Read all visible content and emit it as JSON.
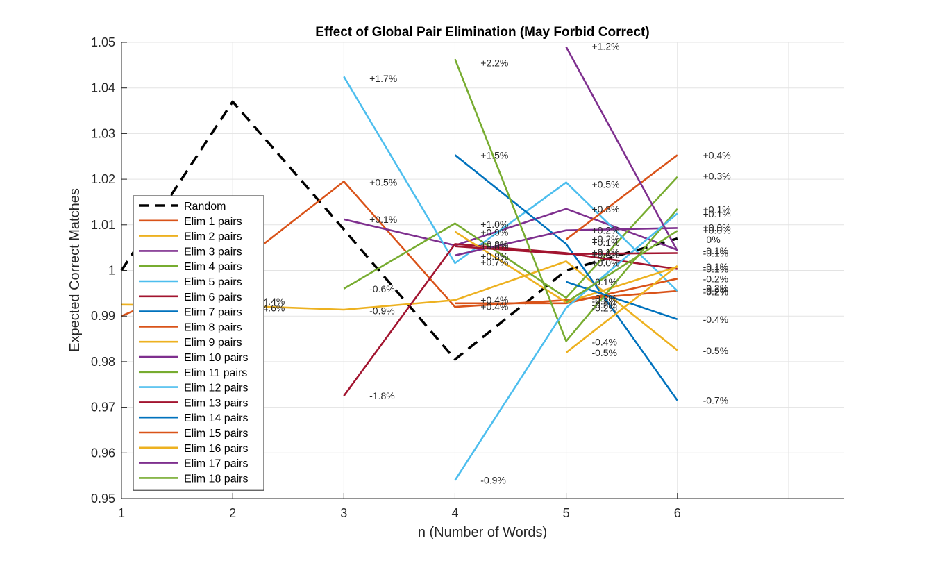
{
  "chart_data": {
    "type": "line",
    "title": "Effect of Global Pair Elimination (May Forbid Correct)",
    "xlabel": "n (Number of Words)",
    "ylabel": "Expected Correct Matches",
    "xlim": [
      1,
      7.5
    ],
    "ylim": [
      0.95,
      1.05
    ],
    "xticks": [
      "1",
      "2",
      "3",
      "4",
      "5",
      "6"
    ],
    "yticks": [
      "0.95",
      "0.96",
      "0.97",
      "0.98",
      "0.99",
      "1",
      "1.01",
      "1.02",
      "1.03",
      "1.04",
      "1.05"
    ],
    "grid": true,
    "legend_position": "west",
    "series": [
      {
        "name": "Random",
        "color": "#000000",
        "dash": true,
        "x": [
          1,
          2,
          3,
          4,
          5,
          6
        ],
        "values": [
          1.0,
          1.037,
          1.009,
          0.9805,
          1.0,
          1.007
        ]
      },
      {
        "name": "Elim 1 pairs",
        "color": "#D95319",
        "x": [
          1,
          2,
          3,
          4,
          5,
          6
        ],
        "values": [
          0.99,
          1.0005,
          1.0195,
          0.992,
          0.9935,
          0.9955
        ]
      },
      {
        "name": "Elim 2 pairs",
        "color": "#EDB120",
        "x": [
          1,
          2,
          3,
          4,
          5,
          6
        ],
        "values": [
          0.9925,
          0.9923,
          0.9914,
          0.9935,
          1.002,
          0.9825
        ]
      },
      {
        "name": "Elim 3 pairs",
        "color": "#7E2F8E",
        "x": [
          3,
          4,
          5,
          6
        ],
        "values": [
          1.0112,
          1.0055,
          1.0135,
          1.0045
        ]
      },
      {
        "name": "Elim 4 pairs",
        "color": "#77AC30",
        "x": [
          3,
          4,
          5,
          6
        ],
        "values": [
          0.996,
          1.0103,
          0.994,
          1.0205
        ]
      },
      {
        "name": "Elim 5 pairs",
        "color": "#4DBEEE",
        "x": [
          3,
          4,
          5,
          6
        ],
        "values": [
          1.0425,
          1.0016,
          1.0193,
          0.9955
        ]
      },
      {
        "name": "Elim 6 pairs",
        "color": "#A2142F",
        "x": [
          3,
          4,
          5,
          6
        ],
        "values": [
          0.9725,
          1.0058,
          1.0038,
          1.0003
        ]
      },
      {
        "name": "Elim 7 pairs",
        "color": "#0072BD",
        "x": [
          4,
          5,
          6
        ],
        "values": [
          1.0253,
          1.0058,
          0.9715
        ]
      },
      {
        "name": "Elim 8 pairs",
        "color": "#D95319",
        "x": [
          4,
          5,
          6
        ],
        "values": [
          0.9928,
          0.9928,
          0.9982
        ]
      },
      {
        "name": "Elim 9 pairs",
        "color": "#EDB120",
        "x": [
          4,
          5,
          6
        ],
        "values": [
          1.0085,
          0.993,
          1.0008
        ]
      },
      {
        "name": "Elim 10 pairs",
        "color": "#7E2F8E",
        "x": [
          4,
          5,
          6
        ],
        "values": [
          1.0033,
          1.0088,
          1.0093
        ]
      },
      {
        "name": "Elim 11 pairs",
        "color": "#77AC30",
        "x": [
          4,
          5,
          6
        ],
        "values": [
          1.0463,
          0.9845,
          1.0135
        ]
      },
      {
        "name": "Elim 12 pairs",
        "color": "#4DBEEE",
        "x": [
          4,
          5,
          6
        ],
        "values": [
          0.954,
          0.9918,
          1.0125
        ]
      },
      {
        "name": "Elim 13 pairs",
        "color": "#A2142F",
        "x": [
          4,
          5,
          6
        ],
        "values": [
          1.0053,
          1.0036,
          1.0038
        ]
      },
      {
        "name": "Elim 14 pairs",
        "color": "#0072BD",
        "x": [
          5,
          6
        ],
        "values": [
          0.9975,
          0.9893
        ]
      },
      {
        "name": "Elim 15 pairs",
        "color": "#D95319",
        "x": [
          5,
          6
        ],
        "values": [
          1.0068,
          1.0253
        ]
      },
      {
        "name": "Elim 16 pairs",
        "color": "#EDB120",
        "x": [
          5,
          6
        ],
        "values": [
          0.982,
          1.001
        ]
      },
      {
        "name": "Elim 17 pairs",
        "color": "#7E2F8E",
        "x": [
          5,
          6
        ],
        "values": [
          1.049,
          1.0043
        ]
      },
      {
        "name": "Elim 18 pairs",
        "color": "#77AC30",
        "x": [
          5,
          6
        ],
        "values": [
          0.993,
          1.0087
        ]
      }
    ],
    "annotations": [
      {
        "text": "4.4%",
        "x": 2.27,
        "y": 0.9932
      },
      {
        "text": "4.6%",
        "x": 2.27,
        "y": 0.9918
      },
      {
        "text": "+1.7%",
        "x": 3.23,
        "y": 1.0421
      },
      {
        "text": "+0.5%",
        "x": 3.23,
        "y": 1.0193
      },
      {
        "text": "+0.1%",
        "x": 3.23,
        "y": 1.0112
      },
      {
        "text": "-0.6%",
        "x": 3.23,
        "y": 0.996
      },
      {
        "text": "-0.9%",
        "x": 3.23,
        "y": 0.9912
      },
      {
        "text": "-1.8%",
        "x": 3.23,
        "y": 0.9725
      },
      {
        "text": "+2.2%",
        "x": 4.23,
        "y": 1.0455
      },
      {
        "text": "+1.5%",
        "x": 4.23,
        "y": 1.0253
      },
      {
        "text": "+1.0%",
        "x": 4.23,
        "y": 1.0101
      },
      {
        "text": "+0.9%",
        "x": 4.23,
        "y": 1.0084
      },
      {
        "text": "+0.8%",
        "x": 4.23,
        "y": 1.0058
      },
      {
        "text": "+0.8%",
        "x": 4.23,
        "y": 1.0054
      },
      {
        "text": "+0.8%",
        "x": 4.23,
        "y": 1.0031
      },
      {
        "text": "+0.7%",
        "x": 4.23,
        "y": 1.0018
      },
      {
        "text": "+0.4%",
        "x": 4.23,
        "y": 0.9935
      },
      {
        "text": "+0.4%",
        "x": 4.23,
        "y": 0.9921
      },
      {
        "text": "-0.9%",
        "x": 4.23,
        "y": 0.954
      },
      {
        "text": "+1.2%",
        "x": 5.23,
        "y": 1.0492
      },
      {
        "text": "+0.5%",
        "x": 5.23,
        "y": 1.0189
      },
      {
        "text": "+0.3%",
        "x": 5.23,
        "y": 1.0135
      },
      {
        "text": "+0.2%",
        "x": 5.23,
        "y": 1.0088
      },
      {
        "text": "+0.2%",
        "x": 5.23,
        "y": 1.0069
      },
      {
        "text": "+0.1%",
        "x": 5.23,
        "y": 1.0062
      },
      {
        "text": "+0.1%",
        "x": 5.23,
        "y": 1.004
      },
      {
        "text": "+0.0%",
        "x": 5.23,
        "y": 1.0035
      },
      {
        "text": "+0.0%",
        "x": 5.23,
        "y": 1.0017
      },
      {
        "text": "-0.1%",
        "x": 5.23,
        "y": 0.9975
      },
      {
        "text": "-0.2%",
        "x": 5.23,
        "y": 0.9939
      },
      {
        "text": "-0.2%",
        "x": 5.23,
        "y": 0.9933
      },
      {
        "text": "-0.2%",
        "x": 5.23,
        "y": 0.9925
      },
      {
        "text": "-0.2%",
        "x": 5.23,
        "y": 0.9918
      },
      {
        "text": "-0.4%",
        "x": 5.23,
        "y": 0.9843
      },
      {
        "text": "-0.5%",
        "x": 5.23,
        "y": 0.982
      },
      {
        "text": "+0.4%",
        "x": 6.23,
        "y": 1.0253
      },
      {
        "text": "+0.3%",
        "x": 6.23,
        "y": 1.0207
      },
      {
        "text": "+0.1%",
        "x": 6.23,
        "y": 1.0134
      },
      {
        "text": "+0.1%",
        "x": 6.23,
        "y": 1.0124
      },
      {
        "text": "+0.0%",
        "x": 6.23,
        "y": 1.0094
      },
      {
        "text": "+0.0%",
        "x": 6.23,
        "y": 1.0088
      },
      {
        "text": "0%",
        "x": 6.26,
        "y": 1.0068
      },
      {
        "text": "-0.1%",
        "x": 6.23,
        "y": 1.0043
      },
      {
        "text": "-0.1%",
        "x": 6.23,
        "y": 1.0038
      },
      {
        "text": "-0.1%",
        "x": 6.23,
        "y": 1.0008
      },
      {
        "text": "-0.1%",
        "x": 6.23,
        "y": 1.0003
      },
      {
        "text": "-0.2%",
        "x": 6.23,
        "y": 0.9982
      },
      {
        "text": "-0.2%",
        "x": 6.23,
        "y": 0.9961
      },
      {
        "text": "-0.2%",
        "x": 6.23,
        "y": 0.9955
      },
      {
        "text": "-0.2%",
        "x": 6.23,
        "y": 0.9953
      },
      {
        "text": "-0.4%",
        "x": 6.23,
        "y": 0.9893
      },
      {
        "text": "-0.5%",
        "x": 6.23,
        "y": 0.9824
      },
      {
        "text": "-0.7%",
        "x": 6.23,
        "y": 0.9715
      }
    ]
  }
}
